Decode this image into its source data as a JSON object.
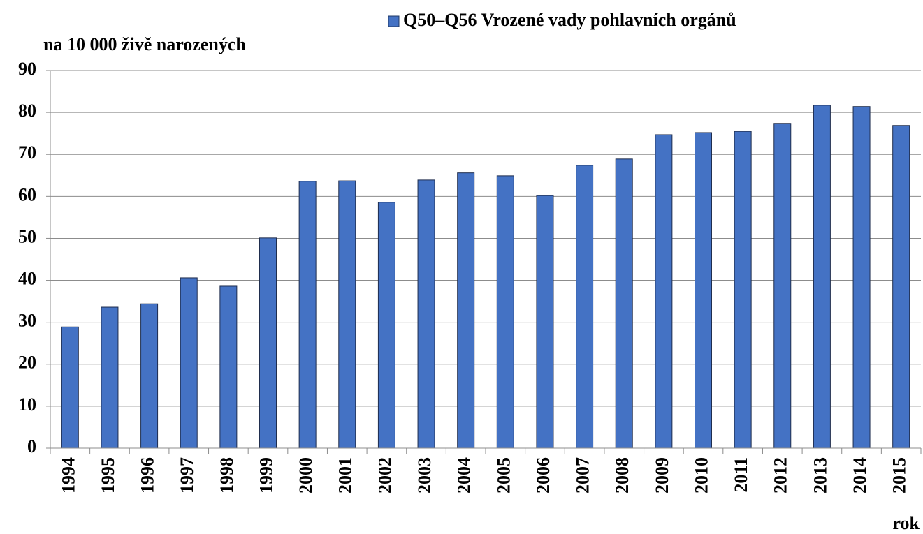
{
  "chart_data": {
    "type": "bar",
    "legend_label": "Q50–Q56 Vrozené vady pohlavních orgánů",
    "y_axis_label": "na 10 000 živě narozených",
    "x_axis_label": "rok",
    "categories": [
      "1994",
      "1995",
      "1996",
      "1997",
      "1998",
      "1999",
      "2000",
      "2001",
      "2002",
      "2003",
      "2004",
      "2005",
      "2006",
      "2007",
      "2008",
      "2009",
      "2010",
      "2011",
      "2012",
      "2013",
      "2014",
      "2015"
    ],
    "values": [
      28.9,
      33.6,
      34.4,
      40.6,
      38.6,
      50.1,
      63.6,
      63.7,
      58.6,
      63.9,
      65.6,
      64.9,
      60.2,
      67.4,
      68.9,
      74.7,
      75.2,
      75.5,
      77.4,
      81.7,
      81.4,
      76.9
    ],
    "color": "#4472c4",
    "ylim": [
      0,
      90
    ],
    "yticks": [
      0,
      10,
      20,
      30,
      40,
      50,
      60,
      70,
      80,
      90
    ],
    "grid": true
  }
}
